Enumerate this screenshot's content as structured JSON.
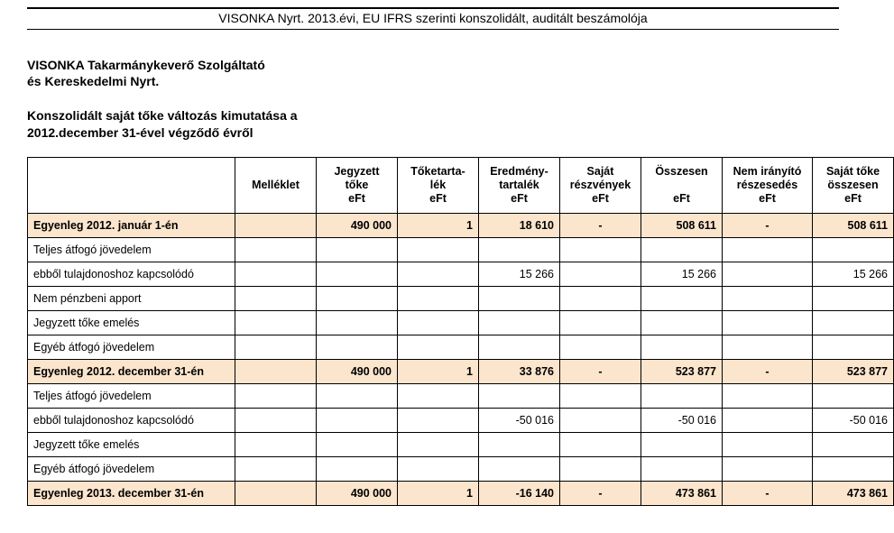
{
  "header_title": "VISONKA Nyrt. 2013.évi, EU IFRS szerinti konszolidált, auditált beszámolója",
  "company_line1": "VISONKA Takarmánykeverő Szolgáltató",
  "company_line2": "és Kereskedelmi Nyrt.",
  "subtitle_line1": "Konszolidált saját tőke változás kimutatása a",
  "subtitle_line2": "2012.december 31-ével végződő évről",
  "table": {
    "columns": [
      "",
      "Melléklet",
      "Jegyzett tőke\neFt",
      "Tőketarta-lék\neFt",
      "Eredmény-tartalék\neFt",
      "Saját részvények\neFt",
      "Összesen\n\neFt",
      "Nem irányító részesedés\neFt",
      "Saját tőke összesen\neFt"
    ],
    "rows": [
      {
        "highlight": true,
        "label": "Egyenleg 2012. január 1-én",
        "cells": [
          "",
          "490 000",
          "1",
          "18 610",
          "-",
          "508 611",
          "-",
          "508 611"
        ]
      },
      {
        "highlight": false,
        "label": "Teljes átfogó jövedelem",
        "cells": [
          "",
          "",
          "",
          "",
          "",
          "",
          "",
          ""
        ]
      },
      {
        "highlight": false,
        "label": "  ebből tulajdonoshoz kapcsolódó",
        "cells": [
          "",
          "",
          "",
          "15 266",
          "",
          "15 266",
          "",
          "15 266"
        ]
      },
      {
        "highlight": false,
        "label": "Nem pénzbeni apport",
        "cells": [
          "",
          "",
          "",
          "",
          "",
          "",
          "",
          ""
        ]
      },
      {
        "highlight": false,
        "label": "Jegyzett tőke emelés",
        "cells": [
          "",
          "",
          "",
          "",
          "",
          "",
          "",
          ""
        ]
      },
      {
        "highlight": false,
        "label": "Egyéb átfogó jövedelem",
        "cells": [
          "",
          "",
          "",
          "",
          "",
          "",
          "",
          ""
        ]
      },
      {
        "highlight": true,
        "label": "Egyenleg 2012. december 31-én",
        "cells": [
          "",
          "490 000",
          "1",
          "33 876",
          "-",
          "523 877",
          "-",
          "523 877"
        ]
      },
      {
        "highlight": false,
        "label": "Teljes átfogó jövedelem",
        "cells": [
          "",
          "",
          "",
          "",
          "",
          "",
          "",
          ""
        ]
      },
      {
        "highlight": false,
        "label": "  ebből tulajdonoshoz kapcsolódó",
        "cells": [
          "",
          "",
          "",
          "-50 016",
          "",
          "-50 016",
          "",
          "-50 016"
        ]
      },
      {
        "highlight": false,
        "label": "Jegyzett tőke emelés",
        "cells": [
          "",
          "",
          "",
          "",
          "",
          "",
          "",
          ""
        ]
      },
      {
        "highlight": false,
        "label": "Egyéb átfogó jövedelem",
        "cells": [
          "",
          "",
          "",
          "",
          "",
          "",
          "",
          ""
        ]
      },
      {
        "highlight": true,
        "label": "Egyenleg 2013. december 31-én",
        "cells": [
          "",
          "490 000",
          "1",
          "-16 140",
          "-",
          "473 861",
          "-",
          "473 861"
        ]
      }
    ],
    "highlight_bg": "#fce5cd",
    "border_color": "#000000"
  }
}
